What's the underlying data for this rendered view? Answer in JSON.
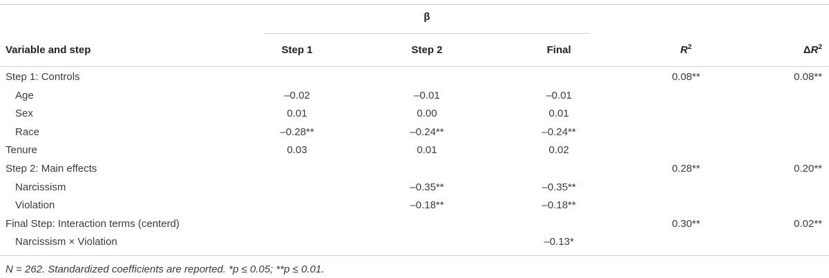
{
  "table": {
    "beta_header": "β",
    "columns": {
      "variable": "Variable and step",
      "step1": "Step 1",
      "step2": "Step 2",
      "final": "Final",
      "r2_symbol": "R",
      "r2_exp": "2",
      "delta_symbol": "Δ",
      "dr2_symbol": "R",
      "dr2_exp": "2"
    },
    "rows": [
      {
        "label": "Step 1: Controls",
        "indent": false,
        "step1": "",
        "step2": "",
        "final": "",
        "r2": "0.08**",
        "dr2": "0.08**"
      },
      {
        "label": "Age",
        "indent": true,
        "step1": "–0.02",
        "step2": "–0.01",
        "final": "–0.01",
        "r2": "",
        "dr2": ""
      },
      {
        "label": "Sex",
        "indent": true,
        "step1": "0.01",
        "step2": "0.00",
        "final": "0.01",
        "r2": "",
        "dr2": ""
      },
      {
        "label": "Race",
        "indent": true,
        "step1": "–0.28**",
        "step2": "–0.24**",
        "final": "–0.24**",
        "r2": "",
        "dr2": ""
      },
      {
        "label": "Tenure",
        "indent": false,
        "step1": "0.03",
        "step2": "0.01",
        "final": "0.02",
        "r2": "",
        "dr2": ""
      },
      {
        "label": "Step 2: Main effects",
        "indent": false,
        "step1": "",
        "step2": "",
        "final": "",
        "r2": "0.28**",
        "dr2": "0.20**"
      },
      {
        "label": "Narcissism",
        "indent": true,
        "step1": "",
        "step2": "–0.35**",
        "final": "–0.35**",
        "r2": "",
        "dr2": ""
      },
      {
        "label": "Violation",
        "indent": true,
        "step1": "",
        "step2": "–0.18**",
        "final": "–0.18**",
        "r2": "",
        "dr2": ""
      },
      {
        "label": "Final Step: Interaction terms (centerd)",
        "indent": false,
        "step1": "",
        "step2": "",
        "final": "",
        "r2": "0.30**",
        "dr2": "0.02**"
      },
      {
        "label": "Narcissism × Violation",
        "indent": true,
        "step1": "",
        "step2": "",
        "final": "–0.13*",
        "r2": "",
        "dr2": ""
      }
    ],
    "footnote": "N = 262. Standardized coefficients are reported. *p ≤ 0.05; **p ≤ 0.01."
  }
}
